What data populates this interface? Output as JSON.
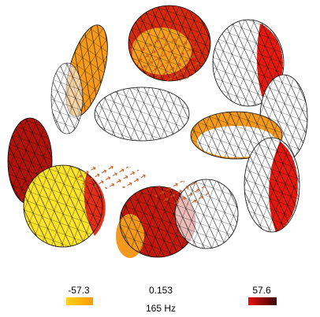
{
  "colorbar": {
    "min_label": "-57.3",
    "mid_label": "0.153",
    "max_label": "57.6"
  },
  "caption": "165 Hz"
}
